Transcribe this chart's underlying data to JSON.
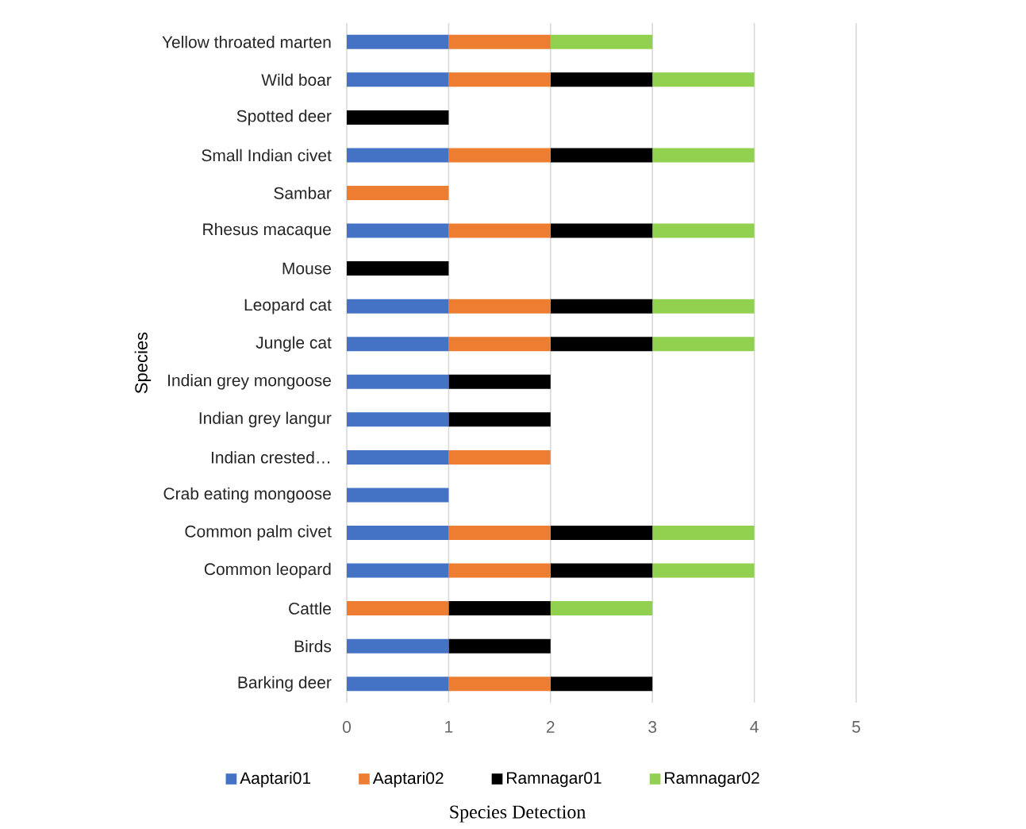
{
  "chart_data": {
    "type": "bar",
    "orientation": "horizontal",
    "stacked": true,
    "xlabel": "Species Detection",
    "ylabel": "Species",
    "categories": [
      "Yellow throated marten",
      "Wild boar",
      "Spotted deer",
      "Small Indian civet",
      "Sambar",
      "Rhesus macaque",
      "Mouse",
      "Leopard cat",
      "Jungle cat",
      "Indian grey mongoose",
      "Indian grey langur",
      "Indian crested…",
      "Crab eating mongoose",
      "Common palm civet",
      "Common leopard",
      "Cattle",
      "Birds",
      "Barking deer"
    ],
    "series": [
      {
        "name": "Aaptari01",
        "color": "#4472c4",
        "values": [
          1,
          1,
          0,
          1,
          0,
          1,
          0,
          1,
          1,
          1,
          1,
          1,
          1,
          1,
          1,
          0,
          1,
          1
        ]
      },
      {
        "name": "Aaptari02",
        "color": "#ed7d31",
        "values": [
          1,
          1,
          0,
          1,
          1,
          1,
          0,
          1,
          1,
          0,
          0,
          1,
          0,
          1,
          1,
          1,
          0,
          1
        ]
      },
      {
        "name": "Ramnagar01",
        "color": "#000000",
        "values": [
          0,
          1,
          1,
          1,
          0,
          1,
          1,
          1,
          1,
          1,
          1,
          0,
          0,
          1,
          1,
          1,
          1,
          1
        ]
      },
      {
        "name": "Ramnagar02",
        "color": "#92d050",
        "values": [
          1,
          1,
          0,
          1,
          0,
          1,
          0,
          1,
          1,
          0,
          0,
          0,
          0,
          1,
          1,
          1,
          0,
          0
        ]
      }
    ],
    "xlim": [
      0,
      5
    ],
    "xticks": [
      0,
      1,
      2,
      3,
      4,
      5
    ],
    "grid": "x",
    "legend": "bottom"
  }
}
